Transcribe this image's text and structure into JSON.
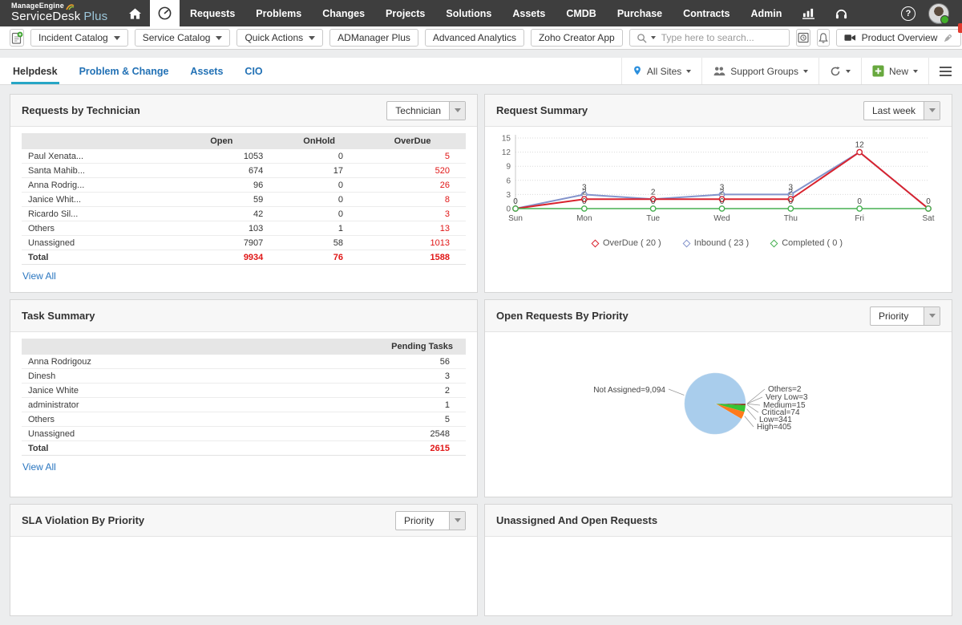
{
  "brand": {
    "manageengine": "ManageEngine",
    "product": "ServiceDesk",
    "product_accent": "Plus"
  },
  "topnav": {
    "items": [
      "Requests",
      "Problems",
      "Changes",
      "Projects",
      "Solutions",
      "Assets",
      "CMDB",
      "Purchase",
      "Contracts",
      "Admin"
    ]
  },
  "toolbar": {
    "dropdowns": [
      {
        "label": "Incident Catalog"
      },
      {
        "label": "Service Catalog"
      },
      {
        "label": "Quick Actions"
      }
    ],
    "buttons": [
      {
        "label": "ADManager Plus"
      },
      {
        "label": "Advanced Analytics"
      },
      {
        "label": "Zoho Creator App"
      }
    ],
    "search": {
      "placeholder": "Type here to search..."
    },
    "product_overview": {
      "label": "Product Overview",
      "badge": "1"
    }
  },
  "tabbar": {
    "tabs": [
      {
        "label": "Helpdesk",
        "active": true
      },
      {
        "label": "Problem & Change",
        "active": false
      },
      {
        "label": "Assets",
        "active": false
      },
      {
        "label": "CIO",
        "active": false
      }
    ],
    "controls": {
      "sites": "All Sites",
      "groups": "Support Groups",
      "new": "New"
    }
  },
  "widgets": {
    "requests_by_technician": {
      "title": "Requests by Technician",
      "filter_value": "Technician",
      "columns": [
        "",
        "Open",
        "OnHold",
        "OverDue"
      ],
      "rows": [
        [
          "Paul Xenata...",
          "1053",
          "0",
          "5"
        ],
        [
          "Santa Mahib...",
          "674",
          "17",
          "520"
        ],
        [
          "Anna Rodrig...",
          "96",
          "0",
          "26"
        ],
        [
          "Janice Whit...",
          "59",
          "0",
          "8"
        ],
        [
          "Ricardo Sil...",
          "42",
          "0",
          "3"
        ],
        [
          "Others",
          "103",
          "1",
          "13"
        ],
        [
          "Unassigned",
          "7907",
          "58",
          "1013"
        ]
      ],
      "total": [
        "Total",
        "9934",
        "76",
        "1588"
      ],
      "view_all": "View All"
    },
    "request_summary": {
      "title": "Request Summary",
      "filter_value": "Last week"
    },
    "task_summary": {
      "title": "Task Summary",
      "columns": [
        "",
        "Pending Tasks"
      ],
      "rows": [
        [
          "Anna Rodrigouz",
          "56"
        ],
        [
          "Dinesh",
          "3"
        ],
        [
          "Janice White",
          "2"
        ],
        [
          "administrator",
          "1"
        ],
        [
          "Others",
          "5"
        ],
        [
          "Unassigned",
          "2548"
        ]
      ],
      "total": [
        "Total",
        "2615"
      ],
      "view_all": "View All"
    },
    "open_requests_by_priority": {
      "title": "Open Requests By Priority",
      "filter_value": "Priority"
    },
    "sla_violation_by_priority": {
      "title": "SLA Violation By Priority",
      "filter_value": "Priority"
    },
    "unassigned_and_open_requests": {
      "title": "Unassigned And Open Requests"
    }
  },
  "chart_data": [
    {
      "type": "line",
      "title": "Request Summary",
      "x": [
        "Sun",
        "Mon",
        "Tue",
        "Wed",
        "Thu",
        "Fri",
        "Sat"
      ],
      "series": [
        {
          "name": "OverDue",
          "total": 20,
          "values": [
            0,
            2,
            2,
            2,
            2,
            12,
            0
          ],
          "color": "#d9232e"
        },
        {
          "name": "Inbound",
          "total": 23,
          "values": [
            0,
            3,
            2,
            3,
            3,
            12,
            0
          ],
          "color": "#8494cc"
        },
        {
          "name": "Completed",
          "total": 0,
          "values": [
            0,
            0,
            0,
            0,
            0,
            0,
            0
          ],
          "color": "#46b050"
        }
      ],
      "ylim": [
        0,
        15
      ],
      "yticks": [
        0,
        3,
        6,
        9,
        12,
        15
      ],
      "grid": true,
      "legend_position": "bottom"
    },
    {
      "type": "pie",
      "title": "Open Requests By Priority",
      "slices": [
        {
          "label": "Not Assigned",
          "display": "Not Assigned=9,094",
          "value": 9094,
          "color": "#a9cdec"
        },
        {
          "label": "Others",
          "display": "Others=2",
          "value": 2,
          "color": "#555555"
        },
        {
          "label": "Very Low",
          "display": "Very Low=3",
          "value": 3,
          "color": "#7b4fb5"
        },
        {
          "label": "Medium",
          "display": "Medium=15",
          "value": 15,
          "color": "#a01313"
        },
        {
          "label": "Critical",
          "display": "Critical=74",
          "value": 74,
          "color": "#7e3b12"
        },
        {
          "label": "Low",
          "display": "Low=341",
          "value": 341,
          "color": "#35c435"
        },
        {
          "label": "High",
          "display": "High=405",
          "value": 405,
          "color": "#ff7a1a"
        }
      ]
    }
  ]
}
